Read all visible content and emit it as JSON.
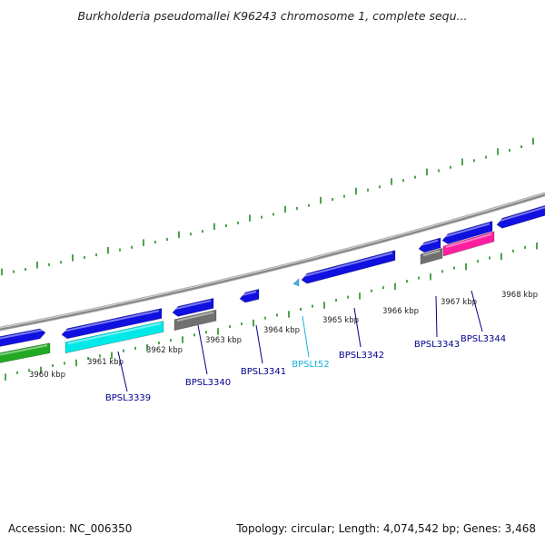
{
  "title": "Burkholderia pseudomallei K96243 chromosome 1, complete sequ...",
  "footer": {
    "accession": "Accession: NC_006350",
    "summary": "Topology: circular; Length: 4,074,542 bp; Genes: 3,468"
  },
  "colors": {
    "backbone": "#888888",
    "tick": "#228b22",
    "gene_blue": "#1010e0",
    "gene_cyan": "#00e8e8",
    "gene_gray": "#707070",
    "gene_pink": "#ff1fa0",
    "gene_green": "#22a822",
    "label_gene": "#00008b",
    "label_rna": "#1ab0e0"
  },
  "scale_labels": [
    {
      "kbp": 3960,
      "text": "3960 kbp"
    },
    {
      "kbp": 3961,
      "text": "3961 kbp"
    },
    {
      "kbp": 3962,
      "text": "3962 kbp"
    },
    {
      "kbp": 3963,
      "text": "3963 kbp"
    },
    {
      "kbp": 3964,
      "text": "3964 kbp"
    },
    {
      "kbp": 3965,
      "text": "3965 kbp"
    },
    {
      "kbp": 3966,
      "text": "3966 kbp"
    },
    {
      "kbp": 3967,
      "text": "3967 kbp"
    },
    {
      "kbp": 3968,
      "text": "3968 kbp"
    }
  ],
  "gene_labels": [
    {
      "text": "BPSL3339",
      "type": "gene"
    },
    {
      "text": "BPSL3340",
      "type": "gene"
    },
    {
      "text": "BPSL3341",
      "type": "gene"
    },
    {
      "text": "BPSLt52",
      "type": "rna"
    },
    {
      "text": "BPSL3342",
      "type": "gene"
    },
    {
      "text": "BPSL3343",
      "type": "gene"
    },
    {
      "text": "BPSL3344",
      "type": "gene"
    }
  ]
}
